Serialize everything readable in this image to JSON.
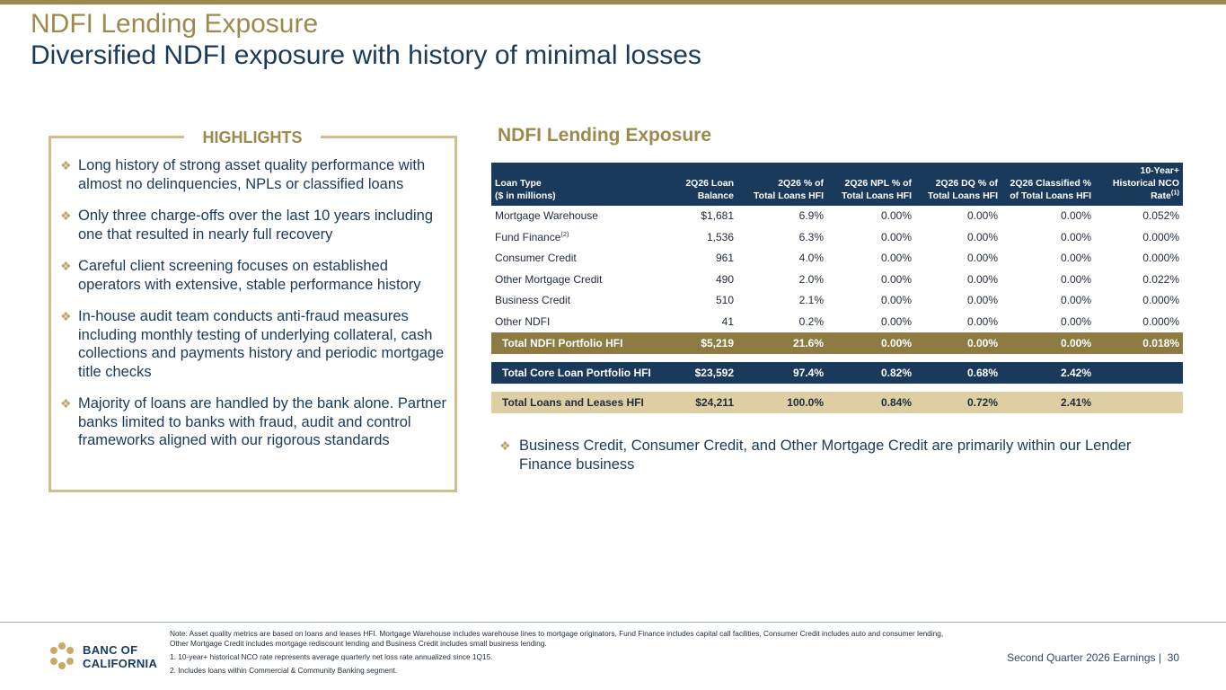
{
  "header": {
    "title": "NDFI Lending Exposure",
    "subtitle": "Diversified NDFI exposure with history of minimal losses"
  },
  "highlights": {
    "title": "HIGHLIGHTS",
    "bullet_icon": "diamond-bullet-icon",
    "items": [
      "Long history of strong asset quality performance with almost no delinquencies, NPLs or classified loans",
      "Only three charge-offs over the last 10 years including one that resulted in nearly full recovery",
      "Careful client screening focuses on established operators with extensive, stable performance history",
      "In-house audit team conducts anti-fraud measures including monthly testing of underlying collateral, cash collections and payments history and periodic mortgage title checks",
      "Majority of loans are handled by the bank alone. Partner banks limited to banks with fraud, audit and control frameworks aligned with our rigorous standards"
    ]
  },
  "exposure": {
    "title": "NDFI Lending Exposure",
    "columns": [
      {
        "line1": "Loan Type",
        "line2": "($ in millions)"
      },
      {
        "line1": "2Q26 Loan",
        "line2": "Balance"
      },
      {
        "line1": "2Q26 % of",
        "line2": "Total Loans HFI"
      },
      {
        "line1": "2Q26 NPL % of",
        "line2": "Total Loans HFI"
      },
      {
        "line1": "2Q26 DQ % of",
        "line2": "Total Loans HFI"
      },
      {
        "line1": "2Q26 Classified %",
        "line2": "of Total Loans HFI"
      },
      {
        "line0": "10-Year+",
        "line1": "Historical NCO",
        "line2": "Rate",
        "sup": "(1)"
      }
    ],
    "rows": [
      {
        "type": "Mortgage Warehouse",
        "sup": "",
        "balance": "$1,681",
        "pct": "6.9%",
        "npl": "0.00%",
        "dq": "0.00%",
        "classified": "0.00%",
        "nco": "0.052%"
      },
      {
        "type": "Fund Finance",
        "sup": "(2)",
        "balance": "1,536",
        "pct": "6.3%",
        "npl": "0.00%",
        "dq": "0.00%",
        "classified": "0.00%",
        "nco": "0.000%"
      },
      {
        "type": "Consumer Credit",
        "sup": "",
        "balance": "961",
        "pct": "4.0%",
        "npl": "0.00%",
        "dq": "0.00%",
        "classified": "0.00%",
        "nco": "0.000%"
      },
      {
        "type": "Other Mortgage Credit",
        "sup": "",
        "balance": "490",
        "pct": "2.0%",
        "npl": "0.00%",
        "dq": "0.00%",
        "classified": "0.00%",
        "nco": "0.022%"
      },
      {
        "type": "Business Credit",
        "sup": "",
        "balance": "510",
        "pct": "2.1%",
        "npl": "0.00%",
        "dq": "0.00%",
        "classified": "0.00%",
        "nco": "0.000%"
      },
      {
        "type": "Other NDFI",
        "sup": "",
        "balance": "41",
        "pct": "0.2%",
        "npl": "0.00%",
        "dq": "0.00%",
        "classified": "0.00%",
        "nco": "0.000%"
      }
    ],
    "totals": [
      {
        "type": "Total NDFI Portfolio HFI",
        "balance": "$5,219",
        "pct": "21.6%",
        "npl": "0.00%",
        "dq": "0.00%",
        "classified": "0.00%",
        "nco": "0.018%"
      },
      {
        "type": "Total Core Loan Portfolio HFI",
        "balance": "$23,592",
        "pct": "97.4%",
        "npl": "0.82%",
        "dq": "0.68%",
        "classified": "2.42%",
        "nco": ""
      },
      {
        "type": "Total Loans and Leases HFI",
        "balance": "$24,211",
        "pct": "100.0%",
        "npl": "0.84%",
        "dq": "0.72%",
        "classified": "2.41%",
        "nco": ""
      }
    ],
    "note": "Business Credit, Consumer Credit, and Other Mortgage Credit are primarily within our Lender Finance business"
  },
  "footer": {
    "logo_line1": "BANC OF",
    "logo_line2": "CALIFORNIA",
    "note": "Note: Asset quality metrics are based on loans and leases HFI. Mortgage Warehouse includes warehouse lines to mortgage originators, Fund Finance includes capital call facilities, Consumer Credit includes auto and consumer lending, Other Mortgage Credit includes mortgage rediscount lending and Business Credit includes small business lending.",
    "footnote1": "1.  10-year+ historical NCO rate represents average quarterly net loss rate annualized since 1Q15.",
    "footnote2": "2.  Includes loans within Commercial & Community Banking segment.",
    "page_label": "Second Quarter 2026 Earnings |",
    "page_number": "30"
  },
  "colors": {
    "gold": "#9c8a4d",
    "navy": "#1a3a5c",
    "tan": "#ddcfa3"
  }
}
